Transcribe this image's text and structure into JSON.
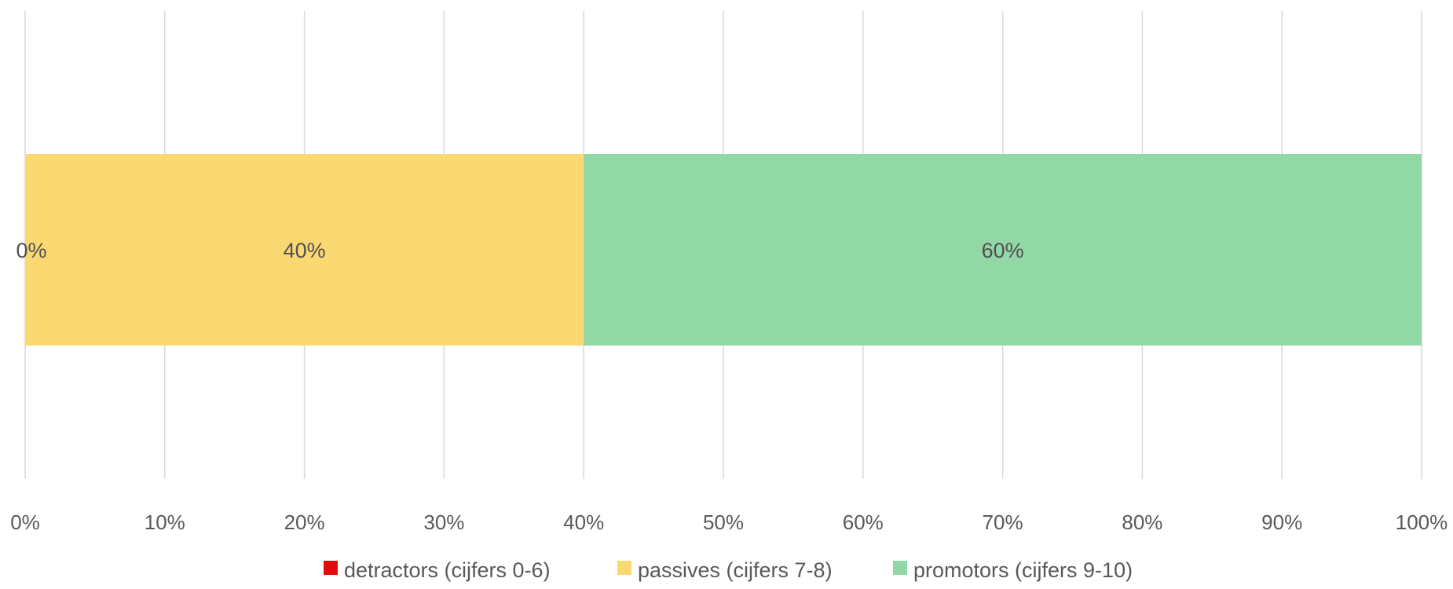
{
  "chart_data": {
    "type": "bar",
    "orientation": "horizontal",
    "stacked": "percent",
    "categories": [
      ""
    ],
    "series": [
      {
        "name": "detractors (cijfers 0-6)",
        "values": [
          0
        ],
        "label": "0%",
        "color": "#e00b0b"
      },
      {
        "name": "passives (cijfers 7-8)",
        "values": [
          40
        ],
        "label": "40%",
        "color": "#fbd972"
      },
      {
        "name": "promotors (cijfers 9-10)",
        "values": [
          60
        ],
        "label": "60%",
        "color": "#92d7a6"
      }
    ],
    "xlim": [
      0,
      100
    ],
    "x_ticks": [
      "0%",
      "10%",
      "20%",
      "30%",
      "40%",
      "50%",
      "60%",
      "70%",
      "80%",
      "90%",
      "100%"
    ],
    "title": "",
    "xlabel": "",
    "ylabel": "",
    "grid": "vertical",
    "legend_position": "bottom"
  }
}
